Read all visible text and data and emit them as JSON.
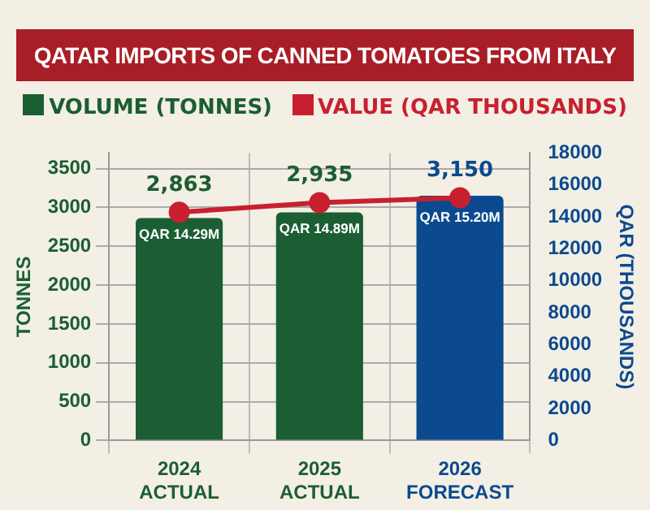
{
  "chart_data": {
    "type": "bar",
    "title": "QATAR IMPORTS OF CANNED TOMATOES FROM ITALY",
    "categories": [
      "2024\nACTUAL",
      "2025\nACTUAL",
      "2026\nFORECAST"
    ],
    "series": [
      {
        "name": "VOLUME (TONNES)",
        "colors": [
          "#1b5e33",
          "#1b5e33",
          "#0b4a8f"
        ],
        "values": [
          2863,
          2935,
          3150
        ],
        "value_labels": [
          "2,863",
          "2,935",
          "3,150"
        ]
      },
      {
        "name": "VALUE (QAR THOUSANDS)",
        "type": "line",
        "axis": "y2",
        "color": "#c8202f",
        "values": [
          14290,
          14890,
          15200
        ],
        "value_labels": [
          "QAR 14.29M",
          "QAR 14.89M",
          "QAR 15.20M"
        ]
      }
    ],
    "ylabel": "TONNES",
    "y2label": "QAR (THOUSANDS)",
    "ylim": [
      0,
      3700
    ],
    "yticks": [
      0,
      500,
      1000,
      1500,
      2000,
      2500,
      3000,
      3500
    ],
    "y2lim": [
      0,
      18000
    ],
    "y2ticks": [
      0,
      2000,
      4000,
      6000,
      8000,
      10000,
      12000,
      14000,
      16000,
      18000
    ],
    "grid": true,
    "legend": "top",
    "marker": "circle"
  }
}
